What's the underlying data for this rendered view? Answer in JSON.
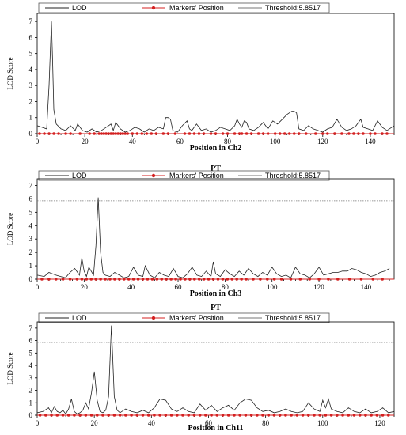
{
  "legend": {
    "lod": "LOD",
    "markers": "Markers' Position",
    "threshold": "Threshold:5.8517"
  },
  "colors": {
    "lod": "#222222",
    "marker": "#d42020",
    "threshold": "#777777",
    "axis": "#000000"
  },
  "chart_data": [
    {
      "type": "line",
      "title": "",
      "xlabel": "Position in Ch2",
      "ylabel": "LOD Score",
      "xlim": [
        0,
        150
      ],
      "ylim": [
        0,
        7.5
      ],
      "xticks": [
        0,
        20,
        40,
        60,
        80,
        100,
        120,
        140
      ],
      "yticks": [
        0,
        1,
        2,
        3,
        4,
        5,
        6,
        7
      ],
      "threshold": 5.8517,
      "series": [
        {
          "name": "LOD",
          "x": [
            0,
            2,
            4,
            5,
            6,
            6.5,
            7,
            8,
            10,
            12,
            14,
            16,
            17,
            19,
            21,
            23,
            25,
            27,
            29,
            30,
            31,
            32,
            33,
            35,
            37,
            39,
            41,
            43,
            45,
            47,
            49,
            51,
            53,
            54,
            55,
            56,
            57,
            59,
            61,
            63,
            64,
            65,
            67,
            69,
            71,
            73,
            75,
            77,
            79,
            81,
            83,
            84,
            85,
            86,
            87,
            88,
            89,
            91,
            93,
            95,
            97,
            99,
            101,
            103,
            105,
            107,
            108,
            109,
            110,
            112,
            114,
            116,
            118,
            120,
            122,
            124,
            126,
            128,
            130,
            132,
            134,
            135,
            136,
            137,
            139,
            141,
            143,
            145,
            147,
            150
          ],
          "y": [
            0.5,
            0.4,
            0.3,
            3.0,
            7.0,
            4.5,
            1.5,
            0.6,
            0.3,
            0.2,
            0.5,
            0.2,
            0.6,
            0.2,
            0.1,
            0.3,
            0.1,
            0.2,
            0.4,
            0.5,
            0.6,
            0.2,
            0.7,
            0.3,
            0.1,
            0.2,
            0.4,
            0.3,
            0.1,
            0.3,
            0.2,
            0.4,
            0.3,
            1.0,
            1.0,
            0.9,
            0.2,
            0.1,
            0.5,
            0.8,
            0.3,
            0.2,
            0.6,
            0.2,
            0.3,
            0.1,
            0.2,
            0.4,
            0.3,
            0.2,
            0.5,
            0.9,
            0.6,
            0.4,
            0.8,
            0.7,
            0.3,
            0.2,
            0.4,
            0.7,
            0.3,
            0.8,
            0.6,
            0.9,
            1.2,
            1.4,
            1.4,
            1.3,
            0.3,
            0.2,
            0.5,
            0.3,
            0.2,
            0.1,
            0.3,
            0.4,
            0.9,
            0.4,
            0.2,
            0.3,
            0.5,
            0.7,
            0.9,
            0.4,
            0.3,
            0.2,
            0.8,
            0.4,
            0.2,
            0.5
          ]
        }
      ],
      "markers": [
        1,
        3,
        5,
        7,
        9,
        12,
        14,
        18,
        22,
        24,
        26,
        27,
        28,
        29,
        30,
        31,
        32,
        33,
        34,
        35,
        36,
        37,
        38,
        40,
        42,
        44,
        46,
        48,
        50,
        53,
        55,
        58,
        62,
        64,
        66,
        68,
        70,
        73,
        75,
        78,
        80,
        83,
        85,
        86,
        88,
        90,
        93,
        95,
        97,
        100,
        102,
        104,
        106,
        108,
        110,
        113,
        117,
        120,
        122,
        125,
        128,
        131,
        133,
        135,
        137,
        140,
        142,
        145,
        147
      ]
    },
    {
      "type": "line",
      "title": "PT",
      "xlabel": "Position in Ch3",
      "ylabel": "LOD Score",
      "xlim": [
        0,
        152
      ],
      "ylim": [
        0,
        7.5
      ],
      "xticks": [
        0,
        20,
        40,
        60,
        80,
        100,
        120,
        140
      ],
      "yticks": [
        0,
        1,
        2,
        3,
        4,
        5,
        6,
        7
      ],
      "threshold": 5.8517,
      "series": [
        {
          "name": "LOD",
          "x": [
            0,
            3,
            5,
            8,
            10,
            12,
            14,
            16,
            18,
            19,
            20,
            21,
            22,
            24,
            25,
            26,
            27,
            28,
            29,
            31,
            33,
            35,
            37,
            39,
            41,
            43,
            45,
            46,
            48,
            50,
            52,
            54,
            56,
            58,
            60,
            62,
            64,
            66,
            68,
            70,
            72,
            74,
            75,
            76,
            78,
            80,
            82,
            84,
            86,
            88,
            90,
            92,
            94,
            96,
            98,
            100,
            102,
            104,
            106,
            108,
            110,
            112,
            114,
            116,
            118,
            120,
            122,
            124,
            126,
            128,
            130,
            132,
            134,
            136,
            138,
            140,
            142,
            144,
            146,
            148,
            150
          ],
          "y": [
            0.3,
            0.2,
            0.5,
            0.3,
            0.2,
            0.1,
            0.5,
            0.8,
            0.3,
            1.6,
            0.6,
            0.2,
            0.9,
            0.3,
            2.5,
            6.1,
            2.0,
            0.5,
            0.3,
            0.2,
            0.5,
            0.3,
            0.1,
            0.2,
            0.9,
            0.3,
            0.2,
            1.0,
            0.3,
            0.1,
            0.5,
            0.3,
            0.2,
            0.8,
            0.2,
            0.1,
            0.4,
            0.9,
            0.3,
            0.2,
            0.6,
            0.2,
            1.3,
            0.4,
            0.2,
            0.7,
            0.4,
            0.2,
            0.6,
            0.3,
            0.8,
            0.4,
            0.2,
            0.5,
            0.3,
            0.9,
            0.4,
            0.2,
            0.3,
            0.1,
            0.9,
            0.4,
            0.3,
            0.1,
            0.4,
            0.9,
            0.3,
            0.4,
            0.5,
            0.5,
            0.6,
            0.6,
            0.8,
            0.7,
            0.5,
            0.4,
            0.2,
            0.3,
            0.5,
            0.6,
            0.8
          ]
        }
      ],
      "markers": [
        2,
        5,
        8,
        11,
        14,
        17,
        19,
        21,
        23,
        25,
        27,
        29,
        31,
        33,
        35,
        37,
        39,
        41,
        43,
        45,
        47,
        49,
        51,
        53,
        55,
        57,
        59,
        61,
        63,
        65,
        67,
        69,
        71,
        73,
        75,
        77,
        79,
        81,
        83,
        85,
        87,
        89,
        92,
        95,
        98,
        101,
        104,
        108,
        112,
        116,
        120,
        124,
        128,
        133,
        138,
        143,
        147
      ]
    },
    {
      "type": "line",
      "title": "PT",
      "xlabel": "Position in Ch11",
      "ylabel": "LOD Score",
      "xlim": [
        0,
        125
      ],
      "ylim": [
        0,
        7.5
      ],
      "xticks": [
        0,
        20,
        40,
        60,
        80,
        100,
        120
      ],
      "yticks": [
        0,
        1,
        2,
        3,
        4,
        5,
        6,
        7
      ],
      "threshold": 5.8517,
      "series": [
        {
          "name": "LOD",
          "x": [
            0,
            2,
            4,
            5,
            6,
            7,
            8,
            9,
            10,
            11,
            12,
            13,
            14,
            15,
            16,
            17,
            18,
            19,
            20,
            21,
            22,
            23,
            24,
            25,
            26,
            27,
            28,
            29,
            31,
            33,
            35,
            37,
            39,
            41,
            43,
            45,
            47,
            49,
            51,
            53,
            55,
            57,
            59,
            61,
            63,
            65,
            67,
            69,
            71,
            73,
            75,
            77,
            79,
            81,
            83,
            85,
            87,
            89,
            91,
            93,
            95,
            97,
            99,
            100,
            101,
            102,
            103,
            105,
            107,
            109,
            111,
            113,
            115,
            117,
            119,
            121,
            123,
            125
          ],
          "y": [
            0.2,
            0.3,
            0.6,
            0.2,
            0.7,
            0.3,
            0.2,
            0.4,
            0.1,
            0.5,
            1.3,
            0.3,
            0.1,
            0.2,
            0.4,
            1.0,
            0.5,
            1.8,
            3.5,
            1.2,
            0.3,
            0.2,
            0.4,
            1.5,
            7.2,
            1.5,
            0.4,
            0.2,
            0.5,
            0.3,
            0.2,
            0.4,
            0.2,
            0.6,
            1.3,
            1.2,
            0.5,
            0.3,
            0.6,
            0.3,
            0.2,
            0.9,
            0.4,
            0.8,
            0.3,
            0.6,
            0.8,
            0.4,
            1.0,
            1.3,
            1.2,
            0.6,
            0.3,
            0.4,
            0.2,
            0.3,
            0.5,
            0.3,
            0.2,
            0.3,
            1.0,
            0.5,
            0.3,
            1.2,
            0.6,
            1.3,
            0.5,
            0.3,
            0.2,
            0.6,
            0.3,
            0.2,
            0.5,
            0.2,
            0.3,
            0.6,
            0.2,
            0.3
          ]
        }
      ],
      "markers": [
        1,
        3,
        5,
        7,
        9,
        11,
        13,
        15,
        17,
        19,
        21,
        23,
        25,
        27,
        29,
        31,
        33,
        35,
        37,
        39,
        41,
        43,
        45,
        47,
        49,
        51,
        53,
        55,
        57,
        59,
        61,
        63,
        65,
        67,
        69,
        71,
        73,
        75,
        77,
        79,
        81,
        83,
        85,
        87,
        89,
        91,
        93,
        95,
        97,
        99,
        101,
        103,
        105,
        107,
        109,
        111,
        113,
        115,
        117,
        119,
        121,
        123
      ]
    }
  ]
}
